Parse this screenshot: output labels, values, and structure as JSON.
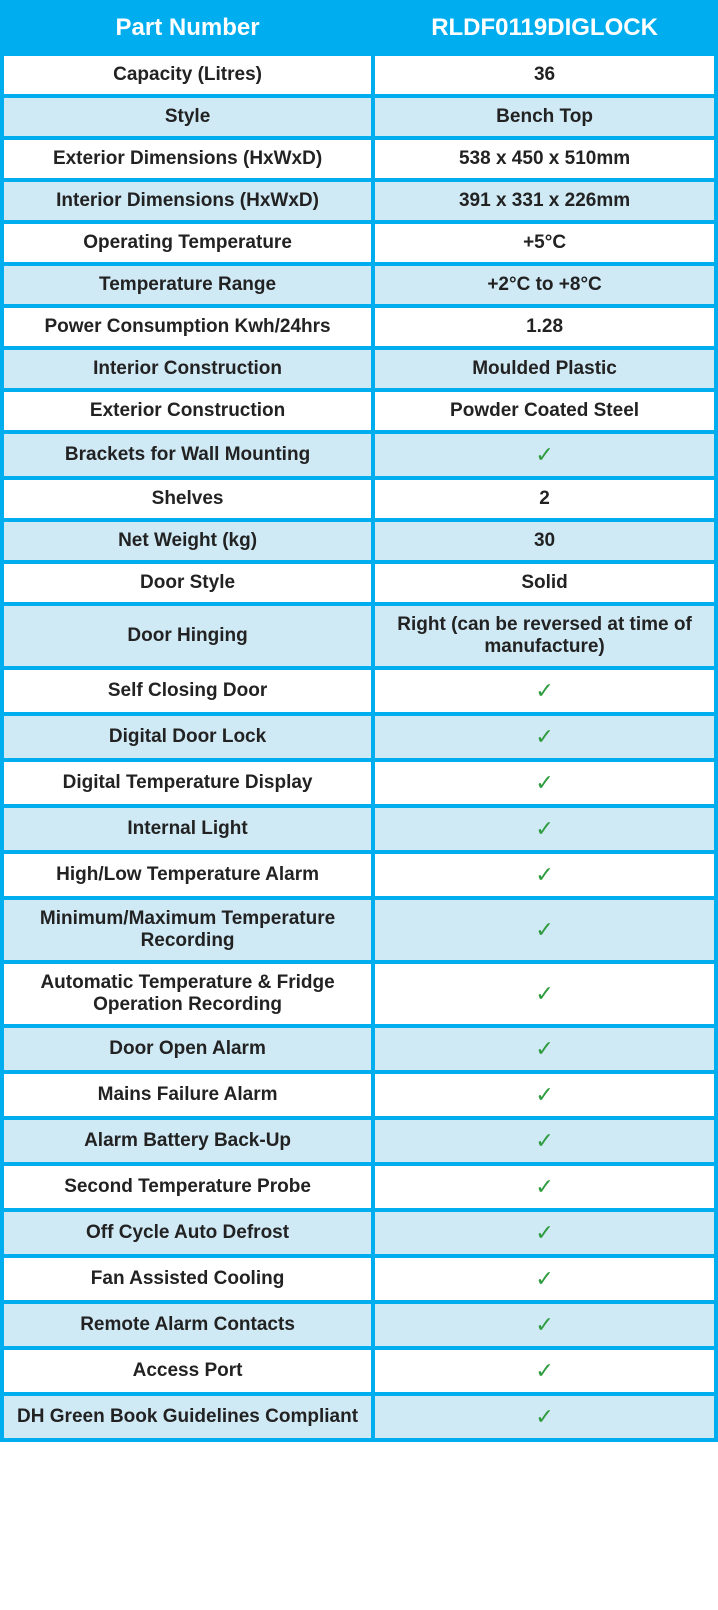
{
  "header": {
    "left": "Part Number",
    "right": "RLDF0119DIGLOCK"
  },
  "colors": {
    "border": "#00aeef",
    "band1": "#ffffff",
    "band2": "#cfe9f5",
    "check": "#2e9b3e",
    "header_text": "#ffffff"
  },
  "rows": [
    {
      "band": 1,
      "label": "Capacity (Litres)",
      "value": "36",
      "check": false
    },
    {
      "band": 2,
      "label": "Style",
      "value": "Bench Top",
      "check": false
    },
    {
      "band": 1,
      "label": "Exterior Dimensions (HxWxD)",
      "value": "538 x 450 x 510mm",
      "check": false
    },
    {
      "band": 2,
      "label": "Interior Dimensions (HxWxD)",
      "value": "391 x 331 x 226mm",
      "check": false
    },
    {
      "band": 1,
      "label": "Operating Temperature",
      "value": "+5°C",
      "check": false
    },
    {
      "band": 2,
      "label": "Temperature Range",
      "value": "+2°C to +8°C",
      "check": false
    },
    {
      "band": 1,
      "label": "Power Consumption Kwh/24hrs",
      "value": "1.28",
      "check": false
    },
    {
      "band": 2,
      "label": "Interior Construction",
      "value": "Moulded Plastic",
      "check": false
    },
    {
      "band": 1,
      "label": "Exterior Construction",
      "value": "Powder Coated Steel",
      "check": false
    },
    {
      "band": 2,
      "label": "Brackets for Wall Mounting",
      "value": "",
      "check": true
    },
    {
      "band": 1,
      "label": "Shelves",
      "value": "2",
      "check": false
    },
    {
      "band": 2,
      "label": "Net Weight (kg)",
      "value": "30",
      "check": false
    },
    {
      "band": 1,
      "label": "Door Style",
      "value": "Solid",
      "check": false
    },
    {
      "band": 2,
      "label": "Door Hinging",
      "value": "Right (can be reversed at time of manufacture)",
      "check": false
    },
    {
      "band": 1,
      "label": "Self Closing Door",
      "value": "",
      "check": true
    },
    {
      "band": 2,
      "label": "Digital Door Lock",
      "value": "",
      "check": true
    },
    {
      "band": 1,
      "label": "Digital Temperature Display",
      "value": "",
      "check": true
    },
    {
      "band": 2,
      "label": "Internal Light",
      "value": "",
      "check": true
    },
    {
      "band": 1,
      "label": "High/Low Temperature Alarm",
      "value": "",
      "check": true
    },
    {
      "band": 2,
      "label": "Minimum/Maximum Temperature Recording",
      "value": "",
      "check": true
    },
    {
      "band": 1,
      "label": "Automatic Temperature & Fridge Operation Recording",
      "value": "",
      "check": true
    },
    {
      "band": 2,
      "label": "Door Open Alarm",
      "value": "",
      "check": true
    },
    {
      "band": 1,
      "label": "Mains Failure Alarm",
      "value": "",
      "check": true
    },
    {
      "band": 2,
      "label": "Alarm Battery Back-Up",
      "value": "",
      "check": true
    },
    {
      "band": 1,
      "label": "Second Temperature Probe",
      "value": "",
      "check": true
    },
    {
      "band": 2,
      "label": "Off Cycle Auto Defrost",
      "value": "",
      "check": true
    },
    {
      "band": 1,
      "label": "Fan Assisted Cooling",
      "value": "",
      "check": true
    },
    {
      "band": 2,
      "label": "Remote Alarm Contacts",
      "value": "",
      "check": true
    },
    {
      "band": 1,
      "label": "Access Port",
      "value": "",
      "check": true
    },
    {
      "band": 2,
      "label": "DH Green Book Guidelines Compliant",
      "value": "",
      "check": true
    }
  ]
}
